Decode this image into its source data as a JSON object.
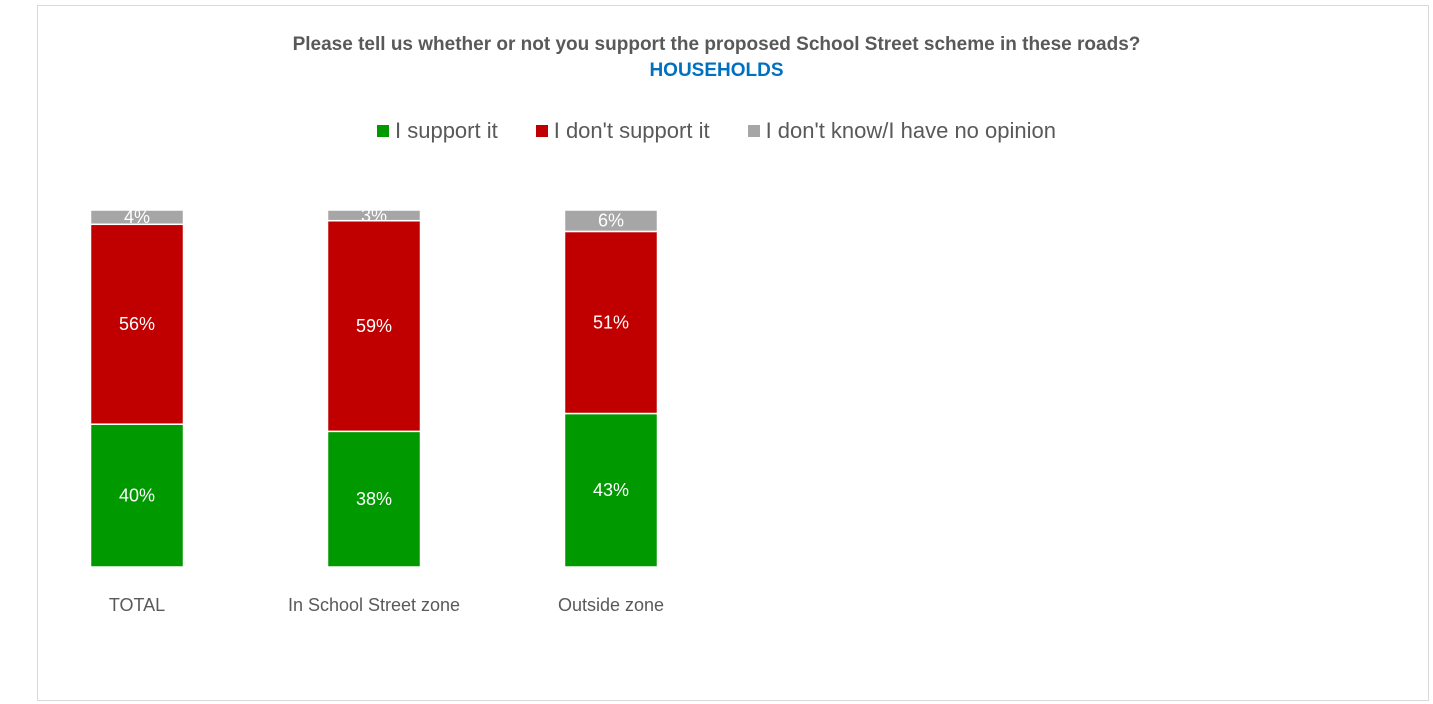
{
  "chart_data": {
    "type": "bar",
    "stacked": true,
    "title": "Please tell us whether or not you support the proposed School Street scheme in these roads?",
    "subtitle": "HOUSEHOLDS",
    "categories": [
      "TOTAL",
      "In School Street zone",
      "Outside zone"
    ],
    "series": [
      {
        "name": "I support it",
        "color": "#009900",
        "values": [
          40,
          38,
          43
        ],
        "labels": [
          "40%",
          "38%",
          "43%"
        ]
      },
      {
        "name": "I don't support it",
        "color": "#c00000",
        "values": [
          56,
          59,
          51
        ],
        "labels": [
          "56%",
          "59%",
          "51%"
        ]
      },
      {
        "name": "I don't know/I have no opinion",
        "color": "#a6a6a6",
        "values": [
          4,
          3,
          6
        ],
        "labels": [
          "4%",
          "3%",
          "6%"
        ]
      }
    ],
    "ylim": [
      0,
      100
    ],
    "grid": false,
    "legend_position": "top"
  }
}
